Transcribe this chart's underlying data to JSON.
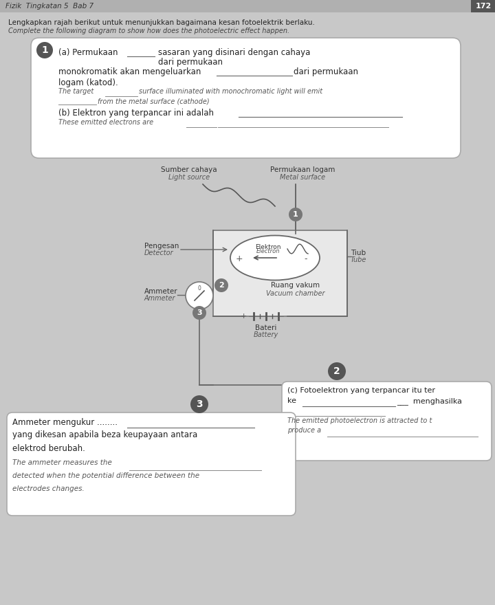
{
  "bg_color": "#c8c8c8",
  "title_text": "Fizik  Tingkatan 5  Bab 7",
  "page_num": "172",
  "header_line1": "Lengkapkan rajah berikut untuk menunjukkan bagaimana kesan fotoelektrik berlaku.",
  "header_line2": "Complete the following diagram to show how does the photoelectric effect happen.",
  "label_sumber": "Sumber cahaya",
  "label_light": "Light source",
  "label_permukaan": "Permukaan logam",
  "label_metal": "Metal surface",
  "label_pengesan": "Pengesan",
  "label_detector": "Detector",
  "label_elektron": "Elektron",
  "label_electron": "Electron",
  "label_tiub": "Tiub",
  "label_tube": "Tube",
  "label_ammeter_ms": "Ammeter",
  "label_ammeter_en": "Ammeter",
  "label_ruang": "Ruang vakum",
  "label_vacuum": "Vacuum chamber",
  "label_bateri": "Bateri",
  "label_battery": "Battery"
}
